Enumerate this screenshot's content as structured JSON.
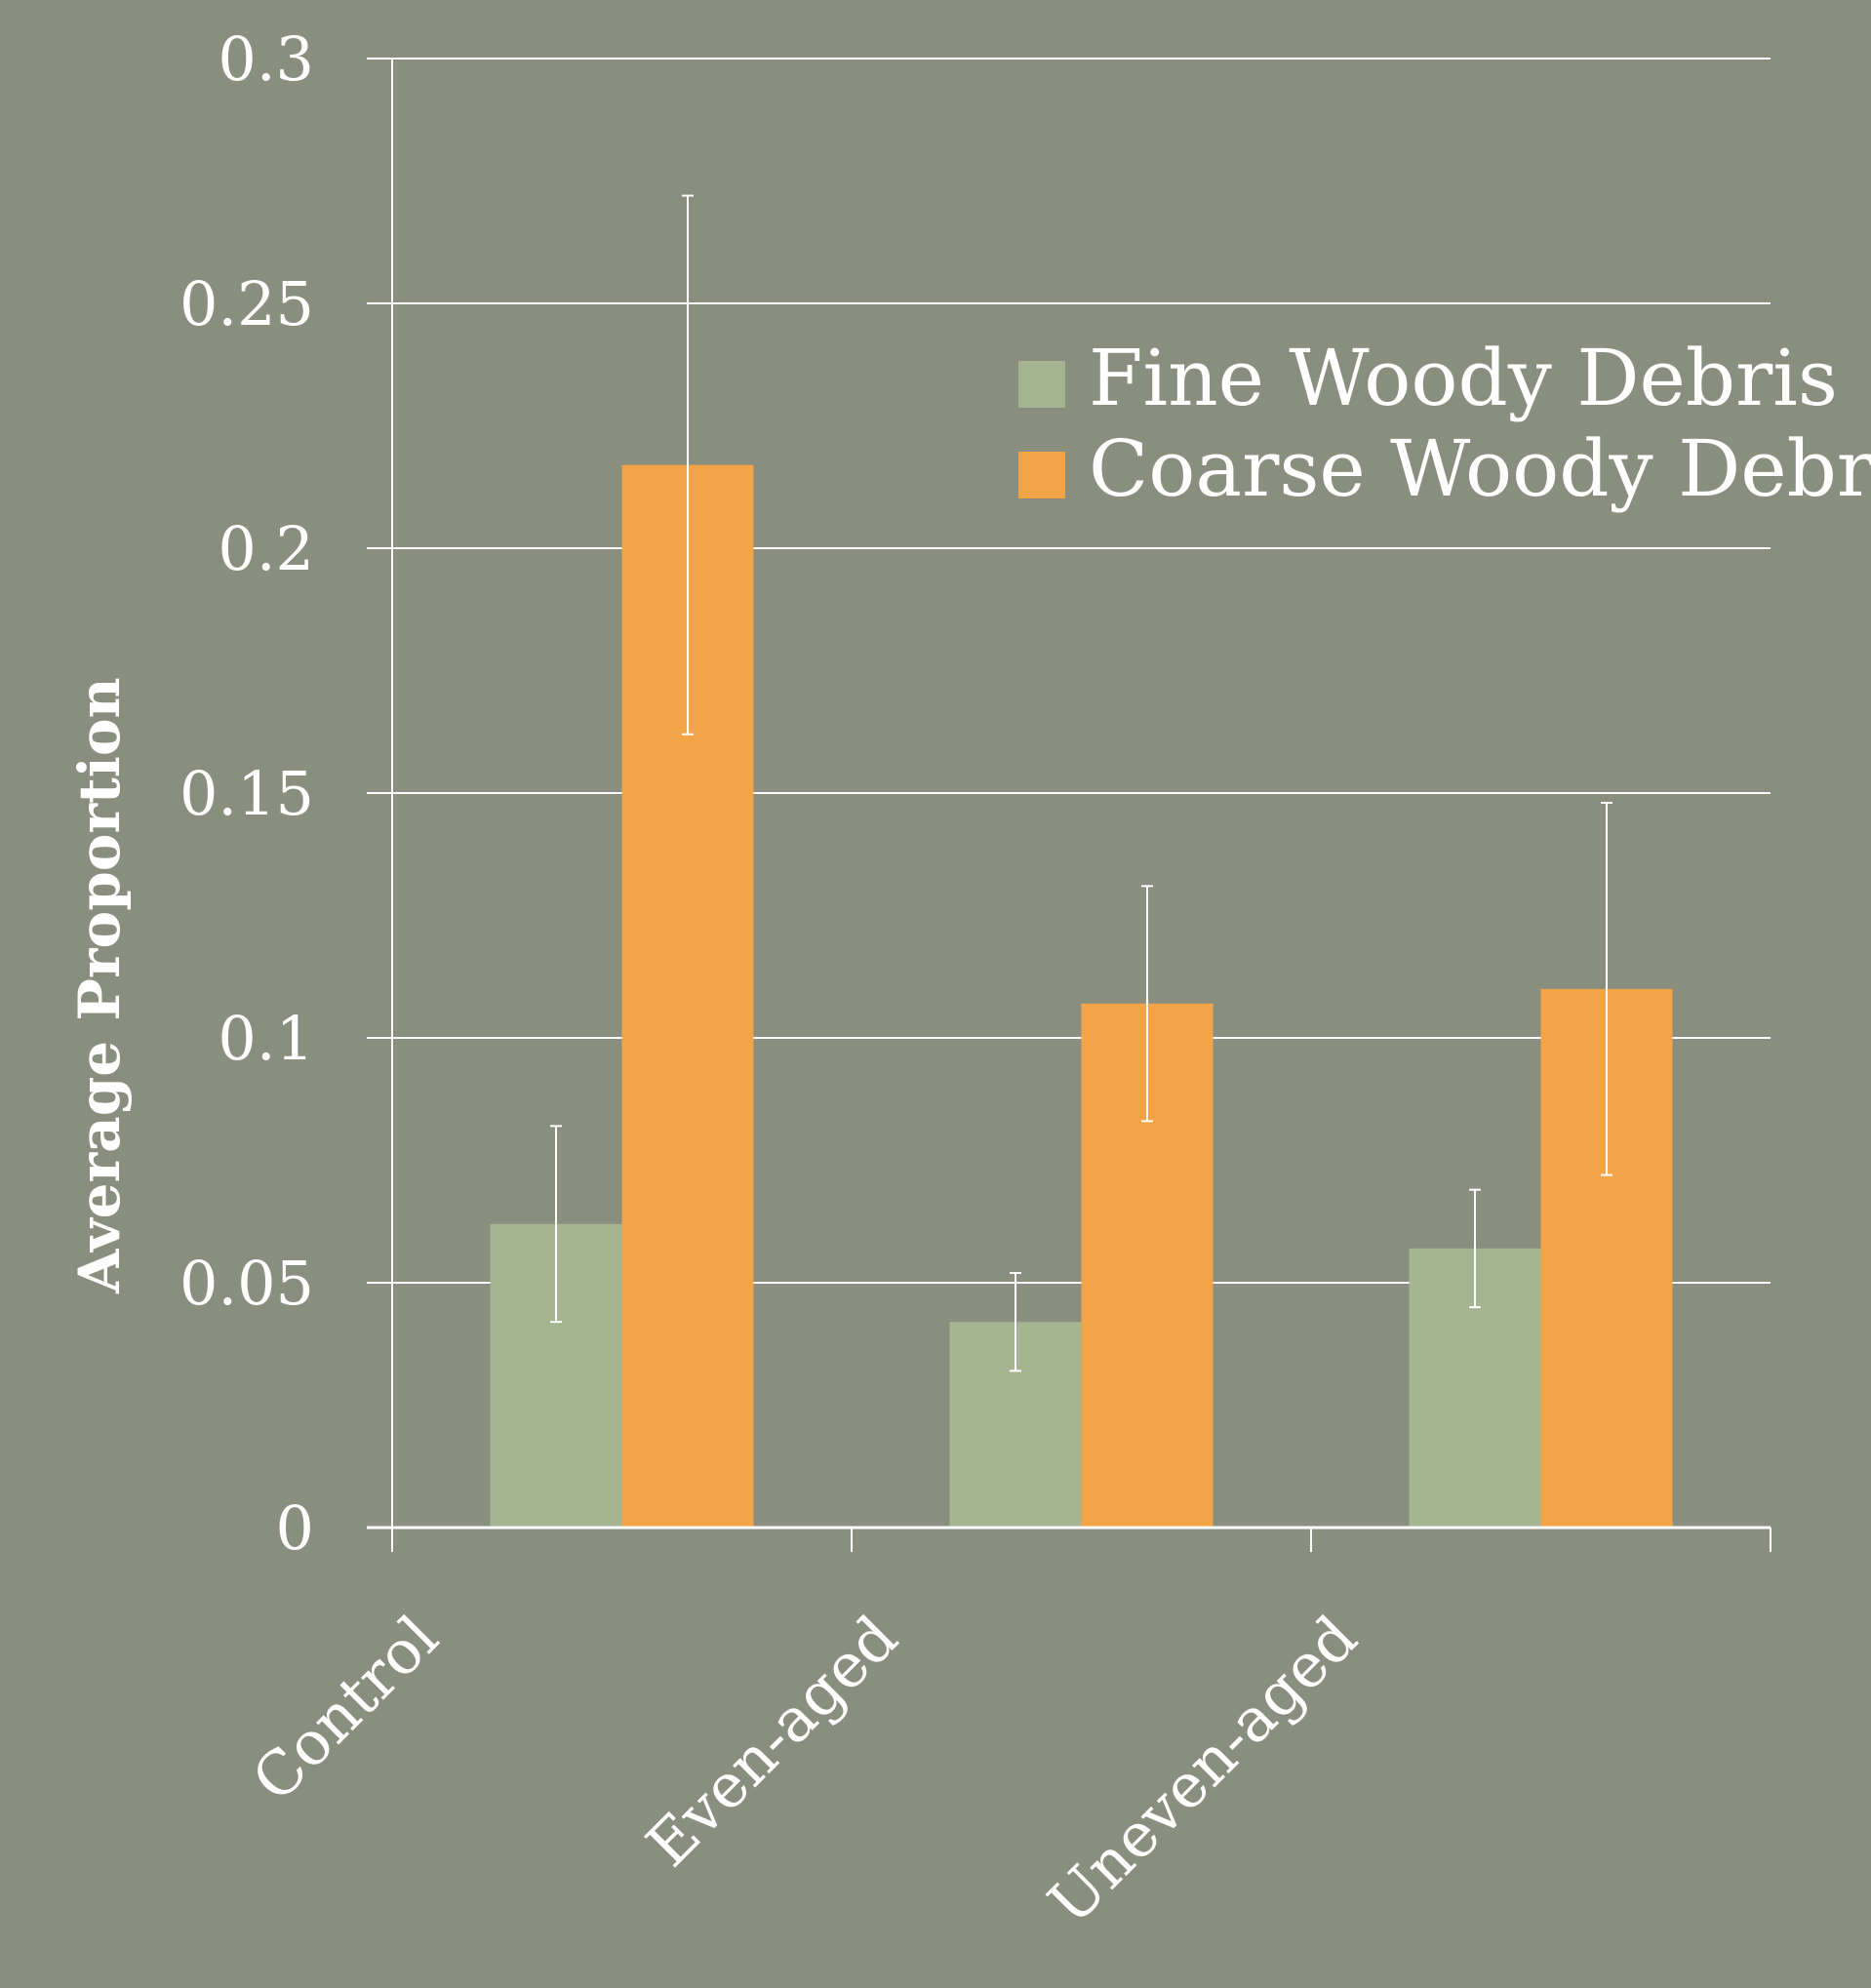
{
  "chart_data": {
    "type": "bar",
    "ylabel": "Average Proportion",
    "ylim": [
      0,
      0.3
    ],
    "yticks": [
      "0",
      "0.05",
      "0.1",
      "0.15",
      "0.2",
      "0.25",
      "0.3"
    ],
    "grid": true,
    "legend_position": "top-right",
    "categories": [
      "Control",
      "Even-aged",
      "Uneven-aged"
    ],
    "series": [
      {
        "name": "Fine Woody Debris",
        "color": "#a5b491",
        "values": [
          0.062,
          0.042,
          0.057
        ],
        "error": [
          0.02,
          0.01,
          0.012
        ]
      },
      {
        "name": "Coarse Woody Debris",
        "color": "#f2a446",
        "values": [
          0.217,
          0.107,
          0.11
        ],
        "error": [
          0.055,
          0.024,
          0.038
        ]
      }
    ]
  }
}
